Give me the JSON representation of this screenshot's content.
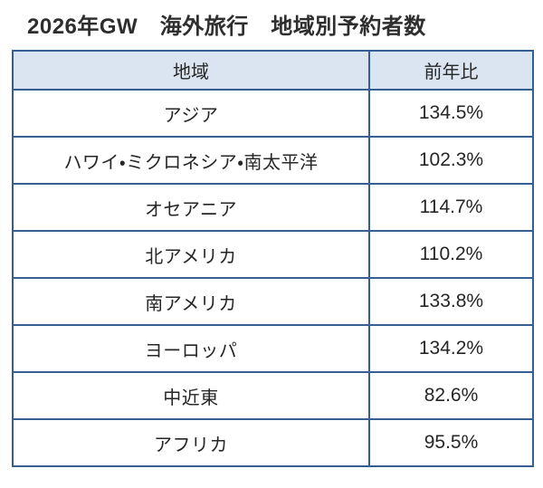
{
  "title": "2026年GW　海外旅行　地域別予約者数",
  "table": {
    "headers": {
      "region": "地域",
      "yoy": "前年比"
    },
    "rows": [
      {
        "region": "アジア",
        "yoy": "134.5%"
      },
      {
        "region": "ハワイ・ミクロネシア・南太平洋",
        "yoy": "102.3%"
      },
      {
        "region": "オセアニア",
        "yoy": "114.7%"
      },
      {
        "region": "北アメリカ",
        "yoy": "110.2%"
      },
      {
        "region": "南アメリカ",
        "yoy": "133.8%"
      },
      {
        "region": "ヨーロッパ",
        "yoy": "134.2%"
      },
      {
        "region": "中近東",
        "yoy": "82.6%"
      },
      {
        "region": "アフリカ",
        "yoy": "95.5%"
      }
    ],
    "colors": {
      "border": "#365f91",
      "header_bg": "#dbe5f1",
      "text": "#262626"
    }
  },
  "chart_data": {
    "type": "table",
    "title": "2026年GW　海外旅行　地域別予約者数",
    "columns": [
      "地域",
      "前年比"
    ],
    "categories": [
      "アジア",
      "ハワイ・ミクロネシア・南太平洋",
      "オセアニア",
      "北アメリカ",
      "南アメリカ",
      "ヨーロッパ",
      "中近東",
      "アフリカ"
    ],
    "values_percent": [
      134.5,
      102.3,
      114.7,
      110.2,
      133.8,
      134.2,
      82.6,
      95.5
    ],
    "value_unit": "%",
    "layout": {
      "header_fill": "#dbe5f1",
      "border_color": "#365f91",
      "grid": true
    }
  }
}
